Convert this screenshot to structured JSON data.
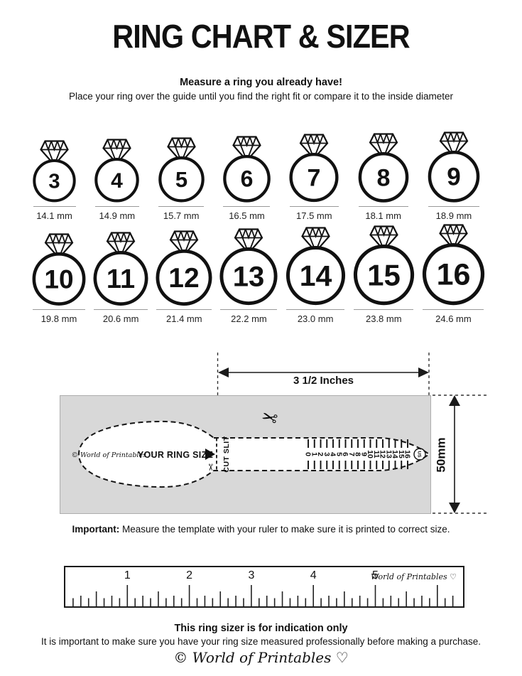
{
  "title": "RING CHART & SIZER",
  "intro": {
    "heading": "Measure a ring you already have!",
    "body": "Place your ring over the guide until you find the right fit or compare it to the inside diameter"
  },
  "ring_rows": [
    {
      "rings": [
        {
          "size": "3",
          "diameter_label": "14.1 mm",
          "diameter_mm": 14.1
        },
        {
          "size": "4",
          "diameter_label": "14.9 mm",
          "diameter_mm": 14.9
        },
        {
          "size": "5",
          "diameter_label": "15.7 mm",
          "diameter_mm": 15.7
        },
        {
          "size": "6",
          "diameter_label": "16.5 mm",
          "diameter_mm": 16.5
        },
        {
          "size": "7",
          "diameter_label": "17.5 mm",
          "diameter_mm": 17.5
        },
        {
          "size": "8",
          "diameter_label": "18.1 mm",
          "diameter_mm": 18.1
        },
        {
          "size": "9",
          "diameter_label": "18.9 mm",
          "diameter_mm": 18.9
        }
      ]
    },
    {
      "rings": [
        {
          "size": "10",
          "diameter_label": "19.8 mm",
          "diameter_mm": 19.8
        },
        {
          "size": "11",
          "diameter_label": "20.6 mm",
          "diameter_mm": 20.6
        },
        {
          "size": "12",
          "diameter_label": "21.4 mm",
          "diameter_mm": 21.4
        },
        {
          "size": "13",
          "diameter_label": "22.2 mm",
          "diameter_mm": 22.2
        },
        {
          "size": "14",
          "diameter_label": "23.0 mm",
          "diameter_mm": 23.0
        },
        {
          "size": "15",
          "diameter_label": "23.8 mm",
          "diameter_mm": 23.8
        },
        {
          "size": "16",
          "diameter_label": "24.6 mm",
          "diameter_mm": 24.6
        }
      ]
    }
  ],
  "sizer": {
    "width_label": "3 1/2 Inches",
    "height_label": "50mm",
    "brand": "© World of Printables ♡",
    "ring_size_label": "YOUR RING SIZE",
    "cut_slit_label": "CUT SLIT",
    "scale_numbers": [
      0,
      1,
      2,
      3,
      4,
      5,
      6,
      7,
      8,
      9,
      10,
      11,
      12,
      13,
      14,
      15,
      16
    ],
    "scale_unit": "US"
  },
  "important": {
    "label": "Important:",
    "text": " Measure the template with your ruler to make sure it is printed to correct size."
  },
  "ruler": {
    "inch_numbers": [
      1,
      2,
      3,
      4,
      5
    ],
    "brand": "World of Printables ♡"
  },
  "footer": {
    "heading": "This ring sizer is for indication only",
    "body": "It is important to make sure you have your ring size measured professionally before making a purchase.",
    "brand": "© World of Printables ♡"
  },
  "colors": {
    "ink": "#111111",
    "gray_panel": "#d8d8d8",
    "underline_gray": "#999999"
  }
}
